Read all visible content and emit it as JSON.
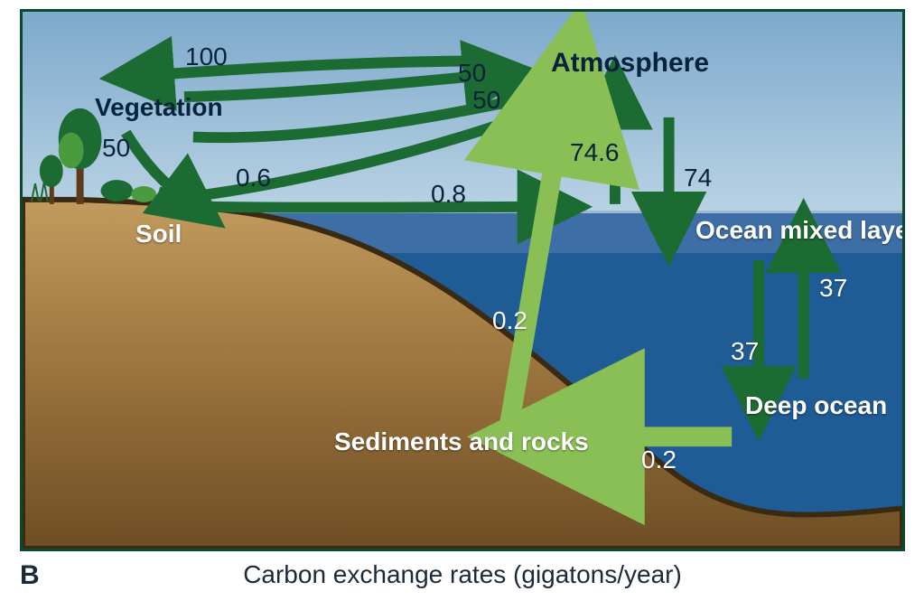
{
  "caption": {
    "panel_letter": "B",
    "text": "Carbon exchange rates (gigatons/year)"
  },
  "colors": {
    "frame_border": "#0a4a2c",
    "sky_top": "#7da9cb",
    "sky_bottom": "#b9d2e4",
    "ocean_mixed": "#3d6fa6",
    "deep_ocean": "#1f5c96",
    "land_top": "#c29b5e",
    "land_mid": "#9e7640",
    "land_bottom": "#6e4e24",
    "land_outline": "#3a2a12",
    "arrow_dark": "#1c6b33",
    "arrow_light": "#8abf55",
    "tree_foliage_dark": "#1c6b33",
    "tree_foliage_light": "#4a9a3e",
    "tree_trunk": "#5d3b1a"
  },
  "layout": {
    "sky_height_pct": 37,
    "ocean_mixed_top_pct": 37,
    "ocean_mixed_height_pct": 8,
    "deep_ocean_top_pct": 45
  },
  "reservoirs": {
    "atmosphere": "Atmosphere",
    "vegetation": "Vegetation",
    "soil": "Soil",
    "ocean_mixed_layer": "Ocean mixed layer",
    "deep_ocean": "Deep ocean",
    "sediments_rocks": "Sediments and rocks"
  },
  "fluxes": {
    "atm_to_veg": "100",
    "veg_to_atm_a": "50",
    "veg_to_atm_b": "50",
    "veg_to_soil": "50",
    "soil_to_atm": "0.6",
    "land_to_ocean": "0.8",
    "sed_to_atm": "0.2",
    "ocean_to_sed": "0.2",
    "ocean_to_atm": "74.6",
    "atm_to_ocean": "74",
    "mixed_to_deep": "37",
    "deep_to_mixed": "37"
  }
}
